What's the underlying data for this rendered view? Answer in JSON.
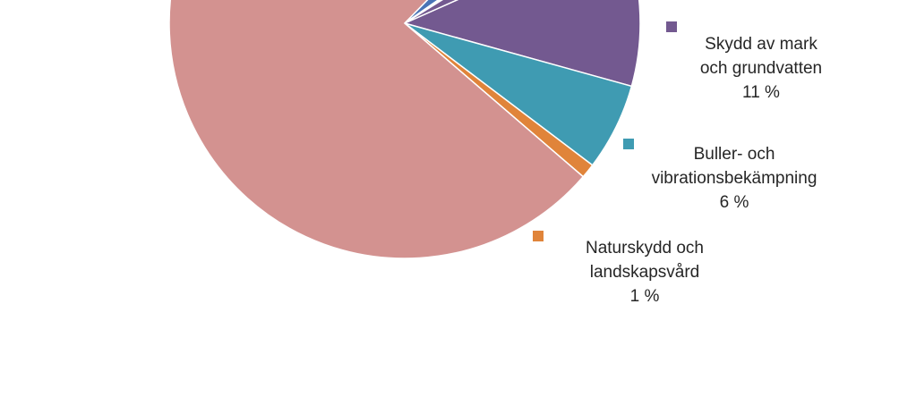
{
  "chart_data": {
    "type": "pie",
    "title": "",
    "slices": [
      {
        "label": "Skydd av mark och grundvatten",
        "value": 11,
        "value_label": "11 %",
        "color": "#735990",
        "lines": [
          "Skydd av mark",
          "och grundvatten"
        ]
      },
      {
        "label": "Buller- och vibrationsbekämpning",
        "value": 6,
        "value_label": "6 %",
        "color": "#3f9bb2",
        "lines": [
          "Buller- och",
          "vibrationsbekämpning"
        ]
      },
      {
        "label": "Naturskydd och landskapsvård",
        "value": 1,
        "value_label": "1 %",
        "color": "#e0843a",
        "lines": [
          "Naturskydd och",
          "landskapsvård"
        ]
      },
      {
        "label": "",
        "value": 76,
        "value_label": "",
        "color": "#d39290",
        "lines": []
      },
      {
        "label": "",
        "value": 3,
        "value_label": "",
        "color": "#4a74b6",
        "lines": []
      },
      {
        "label": "",
        "value": 0.5,
        "value_label": "",
        "color": "#c0504d",
        "lines": []
      },
      {
        "label": "",
        "value": 0.3,
        "value_label": "",
        "color": "#9bbb59",
        "lines": []
      },
      {
        "label": "",
        "value": 2.2,
        "value_label": "",
        "color": "#735990",
        "lines": []
      }
    ],
    "legend": [
      {
        "slice": 0,
        "lines": [
          "Skydd av mark",
          "och grundvatten"
        ],
        "value_label": "11 %",
        "color": "#735990"
      },
      {
        "slice": 1,
        "lines": [
          "Buller- och",
          "vibrationsbekämpning"
        ],
        "value_label": "6 %",
        "color": "#3f9bb2"
      },
      {
        "slice": 2,
        "lines": [
          "Naturskydd och",
          "landskapsvård"
        ],
        "value_label": "1 %",
        "color": "#e0843a"
      }
    ]
  }
}
